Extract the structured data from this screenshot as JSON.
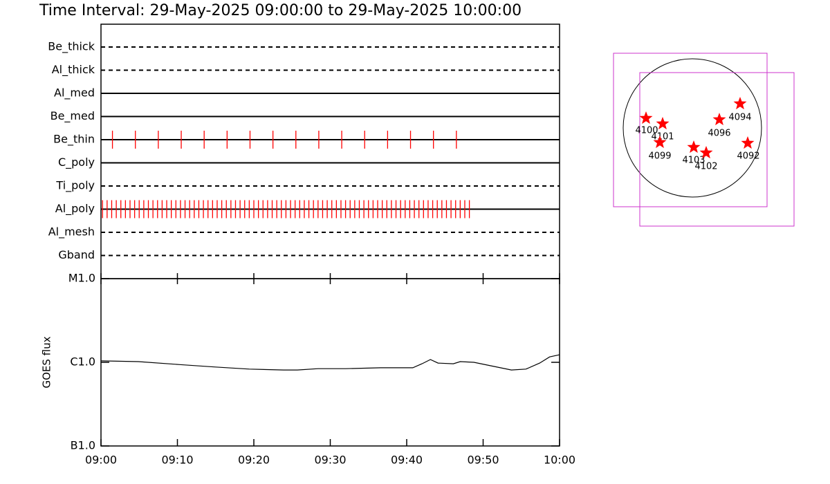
{
  "title": "Time Interval: 29-May-2025 09:00:00 to 29-May-2025 10:00:00",
  "chart_data": [
    {
      "type": "timeline",
      "xlim": [
        0,
        60
      ],
      "color": "#ff0000",
      "rows": [
        {
          "name": "Be_thick",
          "line": "dashed",
          "events": []
        },
        {
          "name": "Al_thick",
          "line": "dashed",
          "events": []
        },
        {
          "name": "Al_med",
          "line": "solid",
          "events": []
        },
        {
          "name": "Be_med",
          "line": "solid",
          "events": []
        },
        {
          "name": "Be_thin",
          "line": "solid",
          "events": [
            1.5,
            4.5,
            7.5,
            10.5,
            13.5,
            16.5,
            19.5,
            22.5,
            25.5,
            28.5,
            31.5,
            34.5,
            37.5,
            40.5,
            43.5,
            46.5
          ]
        },
        {
          "name": "C_poly",
          "line": "solid",
          "events": []
        },
        {
          "name": "Ti_poly",
          "line": "dashed",
          "events": []
        },
        {
          "name": "Al_poly",
          "line": "solid",
          "events": [
            0.2,
            0.8,
            1.4,
            2,
            2.6,
            3.2,
            3.8,
            4.4,
            5,
            5.6,
            6.2,
            6.8,
            7.4,
            8,
            8.6,
            9.2,
            9.8,
            10.4,
            11,
            11.6,
            12.2,
            12.8,
            13.4,
            14,
            14.6,
            15.2,
            15.8,
            16.4,
            17,
            17.6,
            18.2,
            18.8,
            19.4,
            20,
            20.6,
            21.2,
            21.8,
            22.4,
            23,
            23.6,
            24.2,
            24.8,
            25.4,
            26,
            26.6,
            27.2,
            27.8,
            28.4,
            29,
            29.6,
            30.2,
            30.8,
            31.4,
            32,
            32.6,
            33.2,
            33.8,
            34.4,
            35,
            35.6,
            36.2,
            36.8,
            37.4,
            38,
            38.6,
            39.2,
            39.8,
            40.4,
            41,
            41.6,
            42.2,
            42.8,
            43.4,
            44,
            44.6,
            45.2,
            45.8,
            46.4,
            47,
            47.6,
            48.2
          ]
        },
        {
          "name": "Al_mesh",
          "line": "dashed",
          "events": []
        },
        {
          "name": "Gband",
          "line": "dashed",
          "events": []
        }
      ]
    },
    {
      "type": "line",
      "ylabel": "GOES flux",
      "color": "#000000",
      "log_y": true,
      "x": [
        0,
        4.9,
        10.3,
        14.8,
        19.4,
        23.9,
        25.7,
        28.4,
        32,
        36.6,
        40.8,
        42,
        43.1,
        44.1,
        46.1,
        47,
        48.8,
        51,
        53.7,
        55.6,
        57.4,
        58.7,
        60
      ],
      "values": [
        1.04e-06,
        1.02e-06,
        9.4e-07,
        8.8e-07,
        8.3e-07,
        8.1e-07,
        8.1e-07,
        8.4e-07,
        8.4e-07,
        8.6e-07,
        8.6e-07,
        9.6e-07,
        1.08e-06,
        9.8e-07,
        9.6e-07,
        1.02e-06,
        1e-06,
        9.1e-07,
        8.1e-07,
        8.3e-07,
        9.8e-07,
        1.16e-06,
        1.23e-06
      ],
      "xlim": [
        0,
        60
      ],
      "xticks": [
        {
          "value": 0,
          "label": "09:00"
        },
        {
          "value": 10,
          "label": "09:10"
        },
        {
          "value": 20,
          "label": "09:20"
        },
        {
          "value": 30,
          "label": "09:30"
        },
        {
          "value": 40,
          "label": "09:40"
        },
        {
          "value": 50,
          "label": "09:50"
        },
        {
          "value": 60,
          "label": "10:00"
        }
      ],
      "ylim": [
        1e-07,
        1e-05
      ],
      "yticks": [
        {
          "value": 1e-07,
          "label": "B1.0"
        },
        {
          "value": 1e-06,
          "label": "C1.0"
        },
        {
          "value": 1e-05,
          "label": "M1.0"
        }
      ]
    }
  ],
  "map": {
    "regions": [
      "4100",
      "4101",
      "4099",
      "4103",
      "4102",
      "4096",
      "4094",
      "4092"
    ]
  }
}
